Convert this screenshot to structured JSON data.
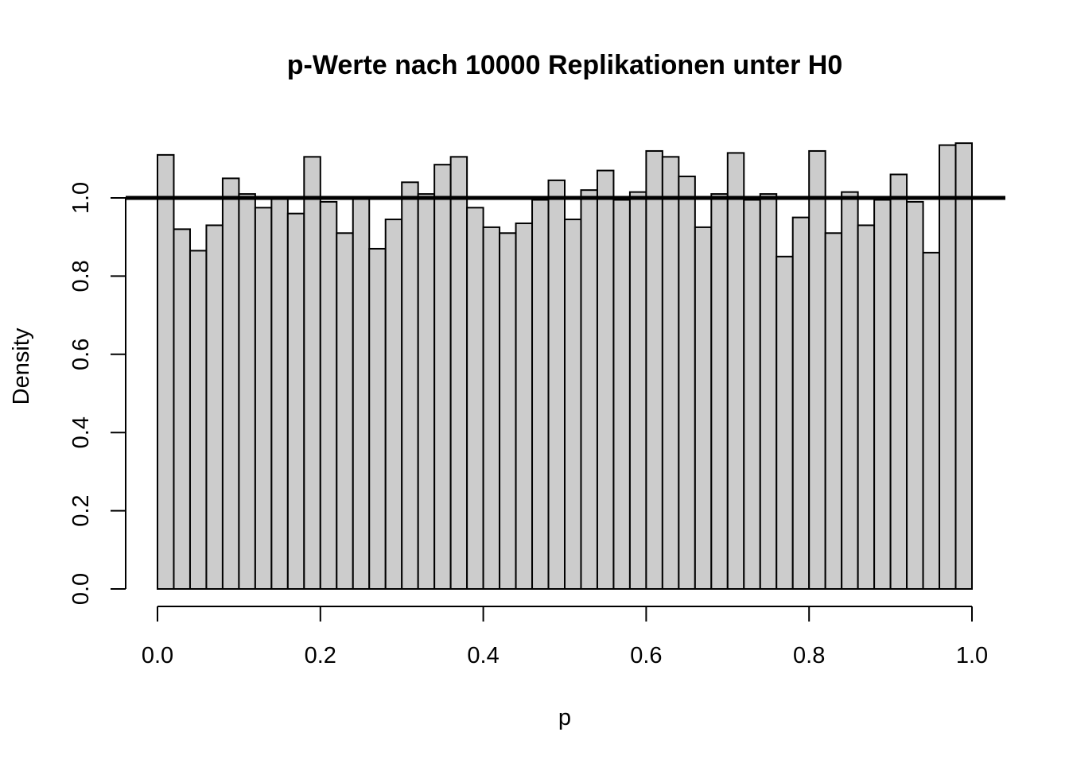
{
  "chart_data": {
    "type": "bar",
    "title": "p-Werte nach 10000 Replikationen unter H0",
    "xlabel": "p",
    "ylabel": "Density",
    "xlim": [
      0,
      1
    ],
    "ylim": [
      0,
      1.2
    ],
    "bin_width": 0.02,
    "x_ticks": [
      0.0,
      0.2,
      0.4,
      0.6,
      0.8,
      1.0
    ],
    "x_tick_labels": [
      "0.0",
      "0.2",
      "0.4",
      "0.6",
      "0.8",
      "1.0"
    ],
    "y_ticks": [
      0.0,
      0.2,
      0.4,
      0.6,
      0.8,
      1.0
    ],
    "y_tick_labels": [
      "0.0",
      "0.2",
      "0.4",
      "0.6",
      "0.8",
      "1.0"
    ],
    "reference_line": {
      "y": 1.0,
      "description": "uniform density"
    },
    "bin_starts": [
      0.0,
      0.02,
      0.04,
      0.06,
      0.08,
      0.1,
      0.12,
      0.14,
      0.16,
      0.18,
      0.2,
      0.22,
      0.24,
      0.26,
      0.28,
      0.3,
      0.32,
      0.34,
      0.36,
      0.38,
      0.4,
      0.42,
      0.44,
      0.46,
      0.48,
      0.5,
      0.52,
      0.54,
      0.56,
      0.58,
      0.6,
      0.62,
      0.64,
      0.66,
      0.68,
      0.7,
      0.72,
      0.74,
      0.76,
      0.78,
      0.8,
      0.82,
      0.84,
      0.86,
      0.88,
      0.9,
      0.92,
      0.94,
      0.96,
      0.98
    ],
    "values": [
      1.11,
      0.92,
      0.865,
      0.93,
      1.05,
      1.01,
      0.975,
      1.0,
      0.96,
      1.105,
      0.99,
      0.91,
      1.0,
      0.87,
      0.945,
      1.04,
      1.01,
      1.085,
      1.105,
      0.975,
      0.925,
      0.91,
      0.935,
      0.995,
      1.045,
      0.945,
      1.02,
      1.07,
      0.995,
      1.015,
      1.12,
      1.105,
      1.055,
      0.925,
      1.01,
      1.115,
      0.995,
      1.01,
      0.85,
      0.95,
      1.12,
      0.91,
      1.015,
      0.93,
      0.995,
      1.06,
      0.99,
      0.86,
      1.135,
      1.14
    ]
  }
}
